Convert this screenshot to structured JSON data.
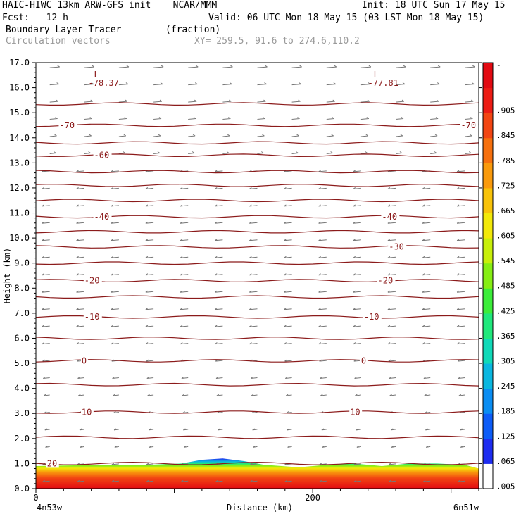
{
  "header": {
    "model_line": "HAIC-HIWC 13km ARW-GFS init    NCAR/MMM",
    "init_line": "Init: 18 UTC Sun 17 May 15",
    "fcst_line": "Fcst:   12 h",
    "valid_line": "Valid: 06 UTC Mon 18 May 15 (03 LST Mon 18 May 15)",
    "field_line": "Boundary Layer Tracer        (fraction)",
    "vector_line": "Circulation vectors",
    "xy_line": "XY= 259.5, 91.6 to 274.6,110.2"
  },
  "colors": {
    "frame": "#000000",
    "contour": "#8b1a1a",
    "vectors": "#777777",
    "scale": [
      "#ffffff",
      "#1e2df0",
      "#0d5cf7",
      "#0a8df2",
      "#0ab7e0",
      "#10d9b8",
      "#20e87c",
      "#3ced3a",
      "#86ee14",
      "#c8ef0a",
      "#f2e90a",
      "#f8c30a",
      "#f99a0c",
      "#f6700e",
      "#f24512",
      "#ec1c14",
      "#e20a12"
    ]
  },
  "chart_data": {
    "type": "heatmap",
    "title": "Boundary Layer Tracer",
    "units": "(fraction)",
    "xlabel": "Distance (km)",
    "ylabel": "Height (km)",
    "xlim": [
      0,
      320
    ],
    "ylim": [
      0,
      17
    ],
    "x_ticks": [
      0,
      200
    ],
    "x_tick_labels": [
      "0",
      "200"
    ],
    "x_end_labels": {
      "left": "4n53w",
      "right": "6n51w"
    },
    "y_ticks": [
      0,
      1,
      2,
      3,
      4,
      5,
      6,
      7,
      8,
      9,
      10,
      11,
      12,
      13,
      14,
      15,
      16,
      17
    ],
    "y_tick_labels": [
      "0.0",
      "1.0",
      "2.0",
      "3.0",
      "4.0",
      "5.0",
      "6.0",
      "7.0",
      "8.0",
      "9.0",
      "10.0",
      "11.0",
      "12.0",
      "13.0",
      "14.0",
      "15.0",
      "16.0",
      "17.0"
    ],
    "colorbar_labels": [
      "-",
      ".905",
      ".845",
      ".785",
      ".725",
      ".665",
      ".605",
      ".545",
      ".485",
      ".425",
      ".365",
      ".305",
      ".245",
      ".185",
      ".125",
      ".065",
      ".005"
    ],
    "tracer_top_km": [
      [
        0,
        0.9
      ],
      [
        20,
        0.92
      ],
      [
        50,
        0.95
      ],
      [
        80,
        0.95
      ],
      [
        105,
        1.0
      ],
      [
        120,
        1.15
      ],
      [
        135,
        1.2
      ],
      [
        150,
        1.1
      ],
      [
        165,
        0.95
      ],
      [
        190,
        0.85
      ],
      [
        210,
        0.95
      ],
      [
        230,
        1.0
      ],
      [
        250,
        0.9
      ],
      [
        270,
        1.0
      ],
      [
        290,
        1.0
      ],
      [
        310,
        0.95
      ],
      [
        320,
        0.8
      ]
    ],
    "temperature_contours": [
      {
        "label": "20",
        "height_km": 1.0,
        "label_positions_km": [
          8
        ]
      },
      {
        "label": "10",
        "height_km": 3.05,
        "label_positions_km": [
          33,
          227
        ]
      },
      {
        "label": "0",
        "height_km": 5.1,
        "label_positions_km": [
          33,
          235
        ]
      },
      {
        "label": "-10",
        "height_km": 6.85,
        "label_positions_km": [
          35,
          237
        ]
      },
      {
        "label": "-20",
        "height_km": 8.3,
        "label_positions_km": [
          35,
          247
        ]
      },
      {
        "label": "-30",
        "height_km": 9.65,
        "label_positions_km": [
          255
        ]
      },
      {
        "label": "-40",
        "height_km": 10.85,
        "label_positions_km": [
          42,
          250
        ]
      },
      {
        "label": "-60",
        "height_km": 13.3,
        "label_positions_km": [
          42
        ]
      },
      {
        "label": "-70",
        "height_km": 14.5,
        "label_positions_km": [
          17,
          307
        ]
      }
    ],
    "extra_isotherm_heights_km": [
      2.05,
      4.15,
      6.0,
      7.65,
      9.0,
      10.25,
      11.5,
      12.1,
      12.65,
      13.8,
      15.35
    ],
    "minima": [
      {
        "label": "L",
        "value": "-78.37",
        "x_km": 43,
        "height_km": 16.6
      },
      {
        "label": "L",
        "value": "-77.81",
        "x_km": 245,
        "height_km": 16.6
      }
    ]
  }
}
